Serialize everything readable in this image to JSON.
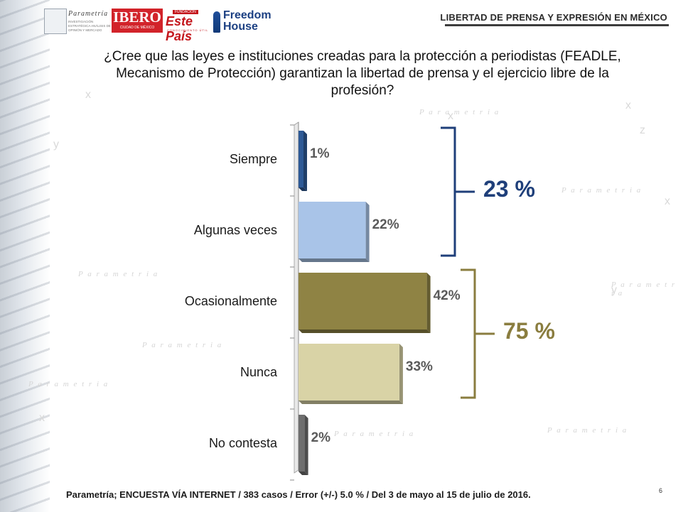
{
  "header": {
    "title": "LIBERTAD DE PRENSA Y EXPRESIÓN EN MÉXICO",
    "logos": {
      "parametria": "Parametría",
      "parametria_sub": "INVESTIGACIÓN ESTRATÉGICA ANÁLISIS DE OPINIÓN Y MERCADO",
      "ibero": "IBERO",
      "ibero_sub": "CIUDAD DE MÉXICO",
      "estepais_top": "FUNDACIÓN",
      "estepais": "Este País",
      "estepais_sub": "CONOCIMIENTO ÚTIL",
      "freedom_house": "Freedom House"
    }
  },
  "question": "¿Cree que las leyes e instituciones creadas para la protección a periodistas (FEADLE, Mecanismo de Protección) garantizan la libertad de prensa y el ejercicio libre de la profesión?",
  "chart_data": {
    "type": "bar",
    "orientation": "horizontal",
    "categories": [
      "Siempre",
      "Algunas veces",
      "Ocasionalmente",
      "Nunca",
      "No contesta"
    ],
    "values": [
      1,
      22,
      42,
      33,
      2
    ],
    "value_labels": [
      "1%",
      "22%",
      "42%",
      "33%",
      "2%"
    ],
    "xlim": [
      0,
      100
    ],
    "grid": false,
    "bar_colors": [
      "#2e5a96",
      "#a9c4e8",
      "#8f8344",
      "#d9d3a6",
      "#6e6e6e"
    ],
    "groups": [
      {
        "label": "23 %",
        "categories": [
          "Siempre",
          "Algunas veces"
        ],
        "color": "#1f3f7a"
      },
      {
        "label": "75 %",
        "categories": [
          "Ocasionalmente",
          "Nunca"
        ],
        "color": "#8a7d3f"
      }
    ]
  },
  "footer": {
    "source": "Parametría; ENCUESTA VÍA INTERNET /  383 casos / Error (+/-) 5.0 % / Del 3 de mayo al 15 de julio de 2016.",
    "page_number": "6"
  }
}
